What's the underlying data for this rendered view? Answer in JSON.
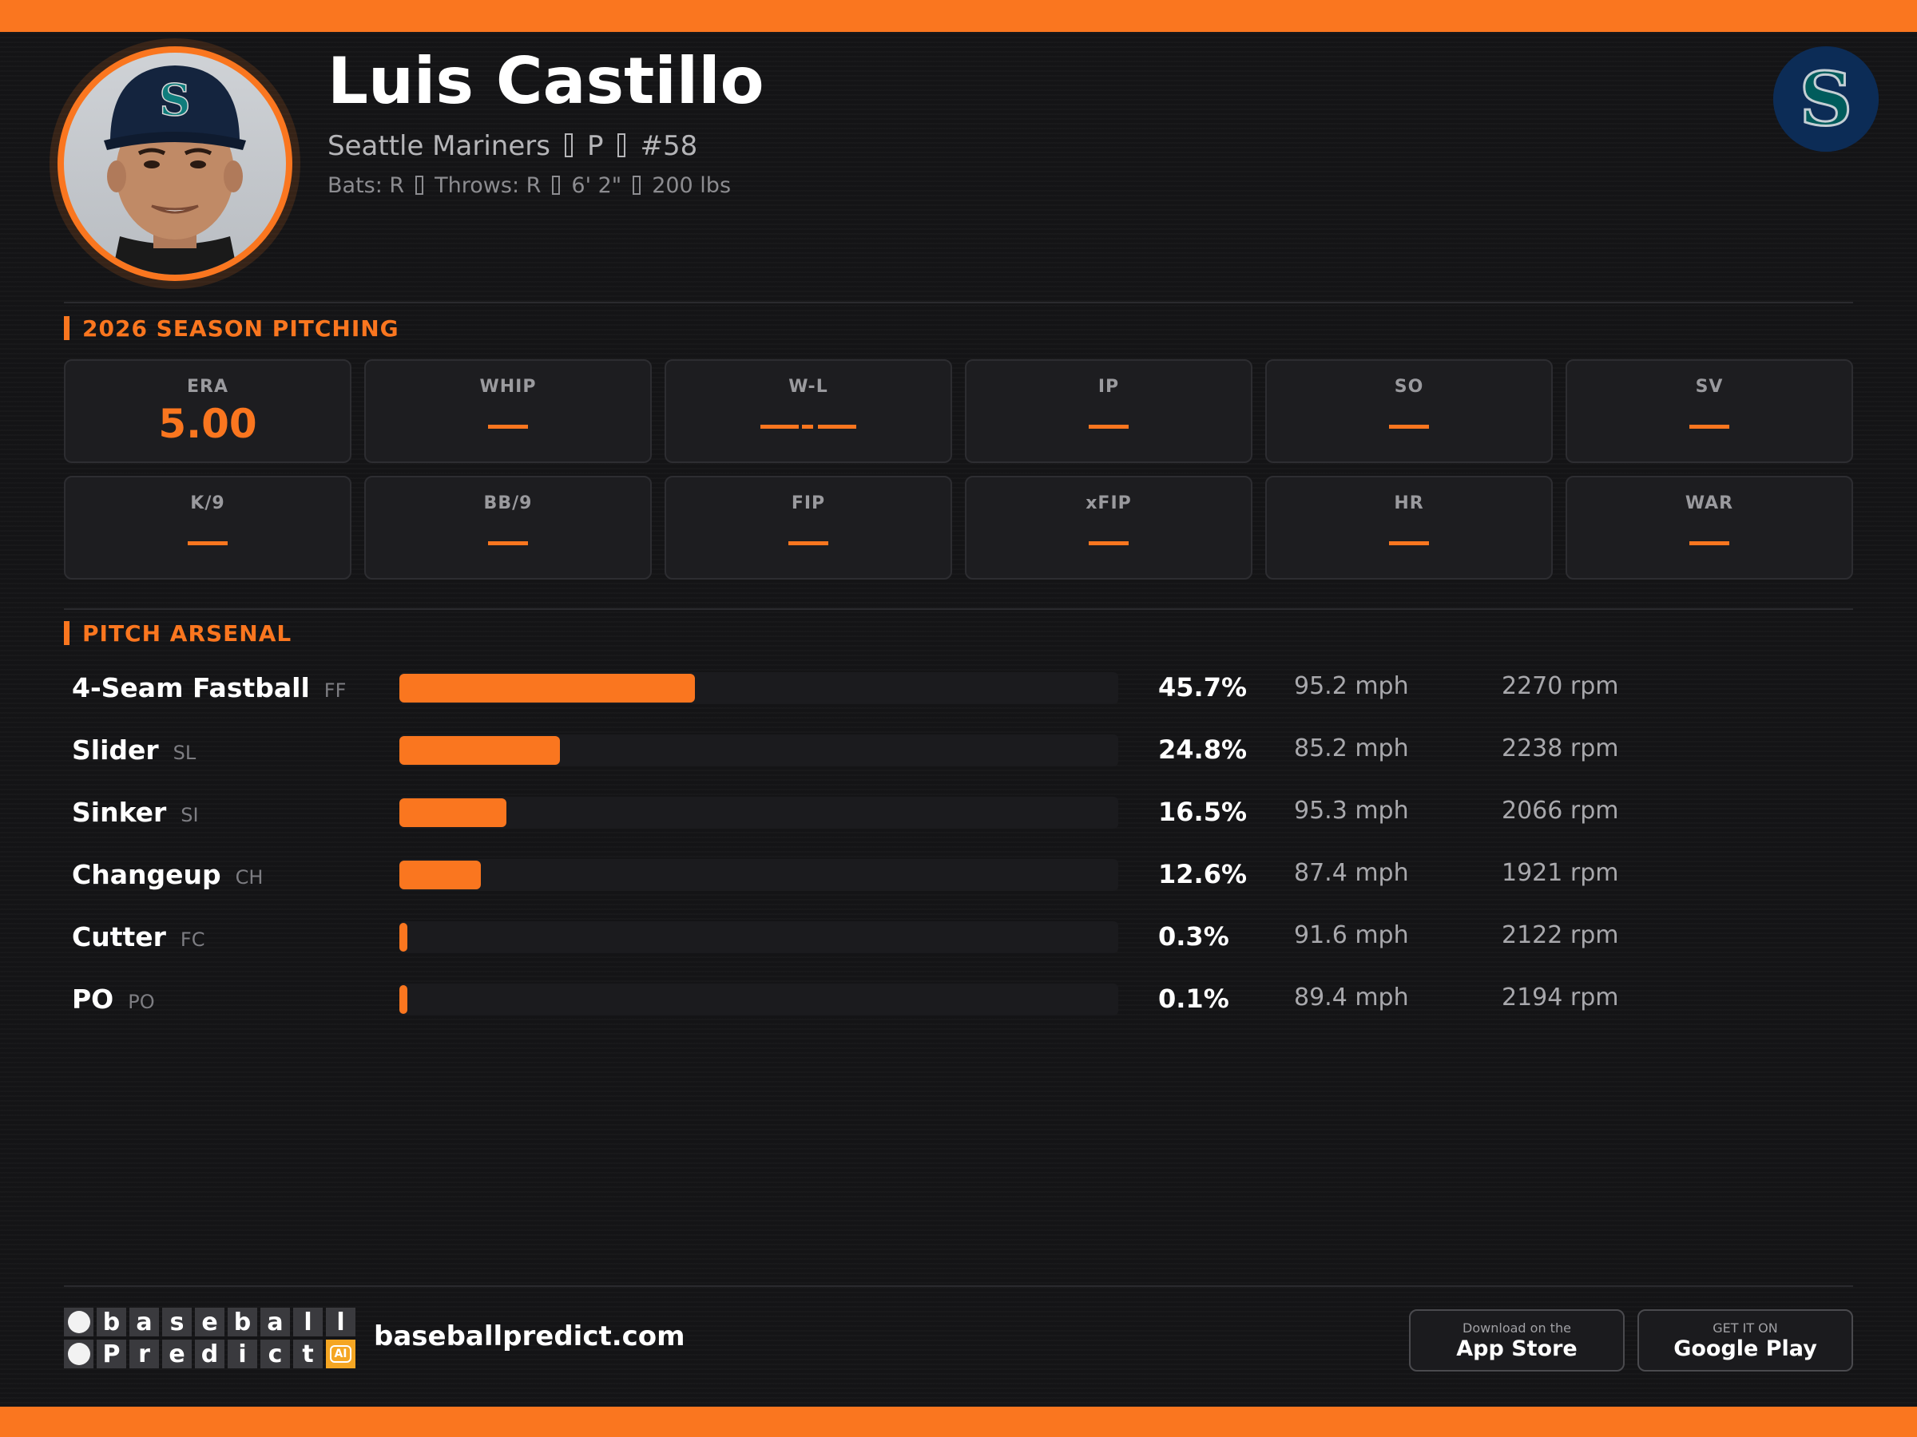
{
  "player": {
    "name": "Luis Castillo",
    "team": "Seattle Mariners",
    "position": "P",
    "number": "#58",
    "bats": "Bats: R",
    "throws": "Throws: R",
    "height": "6' 2\"",
    "weight": "200 lbs"
  },
  "colors": {
    "accent": "#fa761f",
    "background": "#141416",
    "card": "#1d1d20",
    "team_navy": "#0c2c56",
    "team_teal": "#005c5c"
  },
  "season": {
    "title": "2026 SEASON PITCHING",
    "stats": [
      {
        "label": "ERA",
        "value": "5.00"
      },
      {
        "label": "WHIP",
        "value": ""
      },
      {
        "label": "W-L",
        "value": ""
      },
      {
        "label": "IP",
        "value": ""
      },
      {
        "label": "SO",
        "value": ""
      },
      {
        "label": "SV",
        "value": ""
      },
      {
        "label": "K/9",
        "value": ""
      },
      {
        "label": "BB/9",
        "value": ""
      },
      {
        "label": "FIP",
        "value": ""
      },
      {
        "label": "xFIP",
        "value": ""
      },
      {
        "label": "HR",
        "value": ""
      },
      {
        "label": "WAR",
        "value": ""
      }
    ]
  },
  "arsenal": {
    "title": "PITCH ARSENAL",
    "pitches": [
      {
        "name": "4-Seam Fastball",
        "code": "FF",
        "pct_label": "45.7%",
        "usage": 45.7,
        "velo": "95.2 mph",
        "spin": "2270 rpm"
      },
      {
        "name": "Slider",
        "code": "SL",
        "pct_label": "24.8%",
        "usage": 24.8,
        "velo": "85.2 mph",
        "spin": "2238 rpm"
      },
      {
        "name": "Sinker",
        "code": "SI",
        "pct_label": "16.5%",
        "usage": 16.5,
        "velo": "95.3 mph",
        "spin": "2066 rpm"
      },
      {
        "name": "Changeup",
        "code": "CH",
        "pct_label": "12.6%",
        "usage": 12.6,
        "velo": "87.4 mph",
        "spin": "1921 rpm"
      },
      {
        "name": "Cutter",
        "code": "FC",
        "pct_label": "0.3%",
        "usage": 0.3,
        "velo": "91.6 mph",
        "spin": "2122 rpm"
      },
      {
        "name": "PO",
        "code": "PO",
        "pct_label": "0.1%",
        "usage": 0.1,
        "velo": "89.4 mph",
        "spin": "2194 rpm"
      }
    ]
  },
  "footer": {
    "brand_row1": [
      "",
      "b",
      "a",
      "s",
      "e",
      "b",
      "a",
      "l",
      "l"
    ],
    "brand_row2": [
      "",
      "P",
      "r",
      "e",
      "d",
      "i",
      "c",
      "t",
      "AI"
    ],
    "site": "baseballpredict.com",
    "app_store_small": "Download on the",
    "app_store_big": "App Store",
    "google_small": "GET IT ON",
    "google_big": "Google Play"
  }
}
